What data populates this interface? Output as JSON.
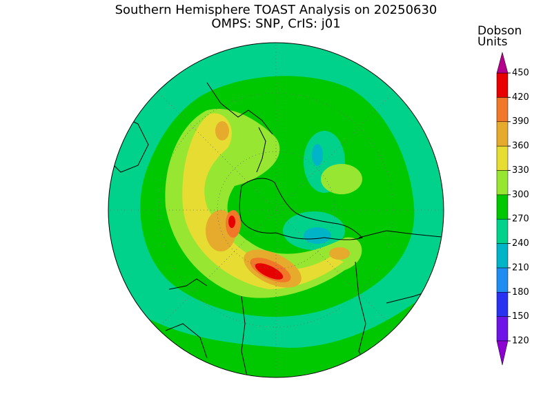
{
  "header": {
    "title": "Southern Hemisphere TOAST Analysis on 20250630",
    "subtitle": "OMPS: SNP, CrIS: j01"
  },
  "colorbar": {
    "label_lines": [
      "Dobson",
      "Units"
    ],
    "ticks": [
      120,
      150,
      180,
      210,
      240,
      270,
      300,
      330,
      360,
      390,
      420,
      450
    ],
    "under_color": "#8c00d2",
    "over_color": "#b4008c",
    "colors": [
      "#6e14e6",
      "#2832f0",
      "#1e8cf0",
      "#00b4c8",
      "#00d28c",
      "#00c800",
      "#96e632",
      "#e6dc32",
      "#e6aa2d",
      "#f07828",
      "#e60000"
    ]
  }
}
